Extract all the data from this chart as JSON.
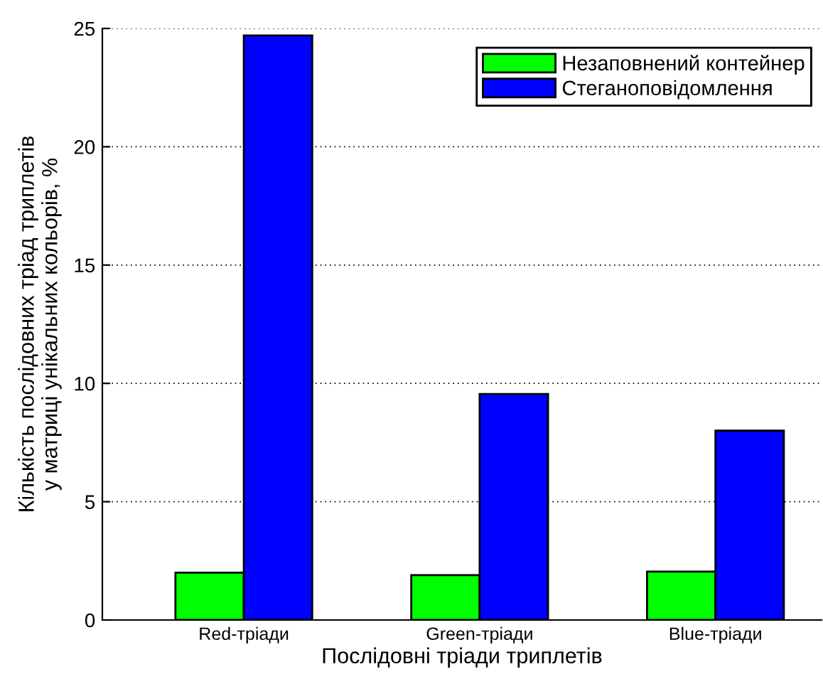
{
  "chart_data": {
    "type": "bar",
    "xlabel": "Послідовні тріади триплетів",
    "ylabel": "Кількість послідовних тріад триплетів\nу матриці унікальних кольорів, %",
    "categories": [
      "Red-тріади",
      "Green-тріади",
      "Blue-тріади"
    ],
    "series": [
      {
        "name": "Незаповнений контейнер",
        "color": "#00ff00",
        "values": [
          2.0,
          1.9,
          2.05
        ]
      },
      {
        "name": "Стеганоповідомлення",
        "color": "#0000ff",
        "values": [
          24.7,
          9.55,
          8.0
        ]
      }
    ],
    "ylim": [
      0,
      25
    ],
    "yticks": [
      0,
      5,
      10,
      15,
      20,
      25
    ],
    "grid": "y",
    "legend": "top right"
  }
}
